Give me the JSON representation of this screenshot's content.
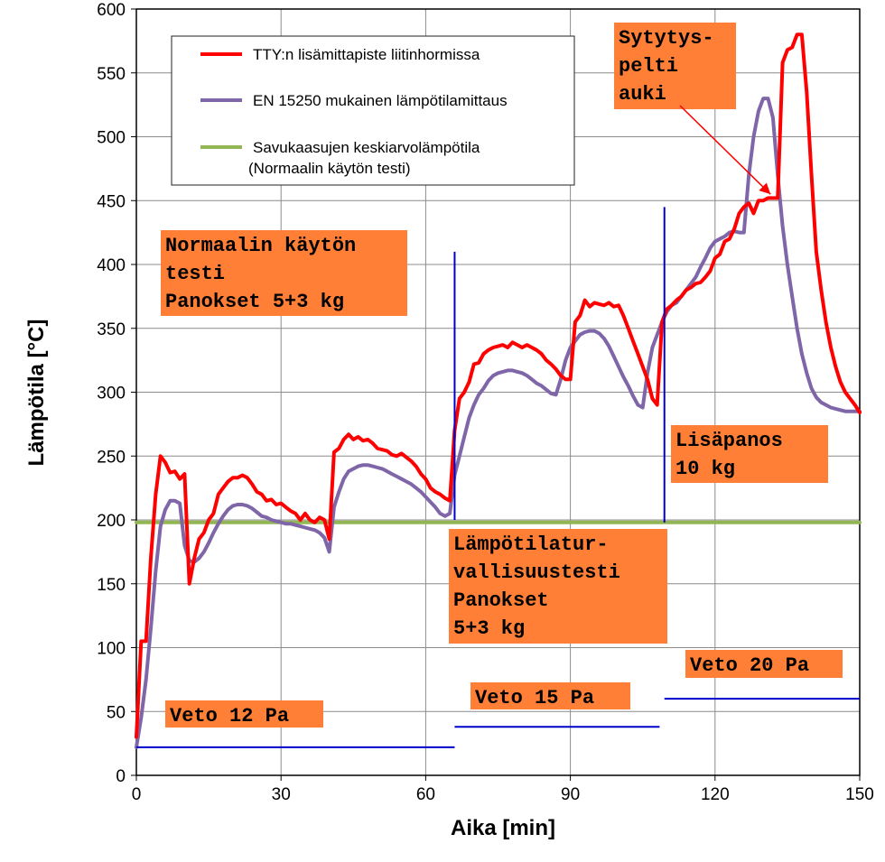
{
  "chart_data": {
    "type": "line",
    "xlabel": "Aika [min]",
    "ylabel": "Lämpötila [°C]",
    "xlim": [
      0,
      150
    ],
    "ylim": [
      0,
      600
    ],
    "x_ticks": [
      0,
      30,
      60,
      90,
      120,
      150
    ],
    "y_ticks": [
      0,
      50,
      100,
      150,
      200,
      250,
      300,
      350,
      400,
      450,
      500,
      550,
      600
    ],
    "x_tick_labels": [
      "0",
      "30",
      "60",
      "90",
      "120",
      "150"
    ],
    "y_tick_labels": [
      "0",
      "50",
      "100",
      "150",
      "200",
      "250",
      "300",
      "350",
      "400",
      "450",
      "500",
      "550",
      "600"
    ],
    "grid": true,
    "legend_position": "top-left",
    "series": [
      {
        "name": "TTY:n lisämittapiste liitinhormissa",
        "color": "#ff0000",
        "x": [
          0,
          1,
          2,
          3,
          4,
          5,
          6,
          7,
          8,
          9,
          10,
          11,
          12,
          13,
          14,
          15,
          16,
          17,
          18,
          19,
          20,
          21,
          22,
          23,
          24,
          25,
          26,
          27,
          28,
          29,
          30,
          31,
          32,
          33,
          34,
          35,
          36,
          37,
          38,
          39,
          40,
          41,
          42,
          43,
          44,
          45,
          46,
          47,
          48,
          49,
          50,
          51,
          52,
          53,
          54,
          55,
          56,
          57,
          58,
          59,
          60,
          61,
          62,
          63,
          64,
          65,
          66,
          67,
          68,
          69,
          70,
          71,
          72,
          73,
          74,
          75,
          76,
          77,
          78,
          79,
          80,
          81,
          82,
          83,
          84,
          85,
          86,
          87,
          88,
          89,
          90,
          91,
          92,
          93,
          94,
          95,
          96,
          97,
          98,
          99,
          100,
          101,
          102,
          103,
          104,
          105,
          106,
          107,
          108,
          109,
          110,
          111,
          112,
          113,
          114,
          115,
          116,
          117,
          118,
          119,
          120,
          121,
          122,
          123,
          124,
          125,
          126,
          127,
          128,
          129,
          130,
          131,
          132,
          133,
          134,
          135,
          136,
          137,
          138,
          139,
          140,
          141,
          142,
          143,
          144,
          145,
          146,
          147,
          148,
          149,
          150
        ],
        "y": [
          30,
          105,
          105,
          170,
          220,
          250,
          245,
          237,
          238,
          232,
          236,
          150,
          170,
          185,
          190,
          200,
          205,
          220,
          225,
          230,
          233,
          233,
          235,
          233,
          228,
          222,
          220,
          215,
          216,
          212,
          213,
          210,
          207,
          205,
          200,
          205,
          200,
          198,
          202,
          200,
          185,
          253,
          256,
          263,
          267,
          263,
          265,
          262,
          263,
          260,
          256,
          255,
          254,
          251,
          250,
          252,
          249,
          246,
          242,
          236,
          232,
          225,
          222,
          220,
          217,
          215,
          270,
          295,
          300,
          308,
          322,
          323,
          330,
          333,
          335,
          336,
          337,
          335,
          339,
          337,
          335,
          337,
          335,
          333,
          330,
          325,
          322,
          318,
          313,
          310,
          310,
          355,
          360,
          372,
          367,
          370,
          369,
          368,
          370,
          367,
          368,
          360,
          350,
          340,
          330,
          320,
          310,
          295,
          290,
          355,
          365,
          368,
          372,
          375,
          380,
          382,
          385,
          386,
          390,
          395,
          405,
          408,
          418,
          420,
          428,
          440,
          445,
          448,
          440,
          450,
          450,
          452,
          452,
          452,
          558,
          568,
          570,
          580,
          580,
          535,
          470,
          410,
          380,
          355,
          335,
          320,
          308,
          300,
          295,
          290,
          284
        ]
      },
      {
        "name": "EN 15250 mukainen lämpötilamittaus",
        "color": "#7f66a8",
        "x": [
          0,
          1,
          2,
          3,
          4,
          5,
          6,
          7,
          8,
          9,
          10,
          11,
          12,
          13,
          14,
          15,
          16,
          17,
          18,
          19,
          20,
          21,
          22,
          23,
          24,
          25,
          26,
          27,
          28,
          29,
          30,
          31,
          32,
          33,
          34,
          35,
          36,
          37,
          38,
          39,
          40,
          41,
          42,
          43,
          44,
          45,
          46,
          47,
          48,
          49,
          50,
          51,
          52,
          53,
          54,
          55,
          56,
          57,
          58,
          59,
          60,
          61,
          62,
          63,
          64,
          65,
          66,
          67,
          68,
          69,
          70,
          71,
          72,
          73,
          74,
          75,
          76,
          77,
          78,
          79,
          80,
          81,
          82,
          83,
          84,
          85,
          86,
          87,
          88,
          89,
          90,
          91,
          92,
          93,
          94,
          95,
          96,
          97,
          98,
          99,
          100,
          101,
          102,
          103,
          104,
          105,
          106,
          107,
          108,
          109,
          110,
          111,
          112,
          113,
          114,
          115,
          116,
          117,
          118,
          119,
          120,
          121,
          122,
          123,
          124,
          125,
          126,
          127,
          128,
          129,
          130,
          131,
          132,
          133,
          134,
          135,
          136,
          137,
          138,
          139,
          140,
          141,
          142,
          143,
          144,
          145,
          146,
          147,
          148,
          149,
          150
        ],
        "y": [
          22,
          45,
          75,
          115,
          160,
          195,
          208,
          215,
          215,
          213,
          180,
          168,
          167,
          170,
          175,
          182,
          190,
          197,
          203,
          208,
          211,
          212,
          212,
          211,
          209,
          206,
          203,
          202,
          200,
          199,
          198,
          197,
          197,
          196,
          195,
          194,
          193,
          192,
          190,
          186,
          175,
          210,
          222,
          232,
          238,
          240,
          242,
          243,
          243,
          242,
          241,
          240,
          238,
          236,
          234,
          232,
          230,
          228,
          225,
          222,
          218,
          214,
          210,
          205,
          203,
          205,
          235,
          250,
          265,
          280,
          290,
          298,
          303,
          309,
          313,
          315,
          316,
          317,
          317,
          316,
          315,
          313,
          310,
          307,
          305,
          302,
          299,
          298,
          310,
          325,
          335,
          340,
          345,
          347,
          348,
          348,
          346,
          342,
          336,
          328,
          320,
          312,
          305,
          297,
          290,
          288,
          315,
          335,
          345,
          355,
          363,
          368,
          370,
          375,
          380,
          385,
          390,
          398,
          405,
          413,
          418,
          420,
          422,
          425,
          426,
          425,
          425,
          470,
          500,
          520,
          530,
          530,
          515,
          470,
          430,
          400,
          375,
          350,
          330,
          315,
          303,
          296,
          292,
          290,
          288,
          287,
          286,
          285,
          285,
          285,
          285
        ]
      },
      {
        "name": "Savukaasujen keskiarvolämpötila",
        "name_line2": "(Normaalin käytön testi)",
        "color": "#92b653",
        "x": [
          0,
          150
        ],
        "y": [
          198,
          198
        ]
      }
    ],
    "vertical_markers": [
      {
        "x": 66,
        "y_from": 200,
        "y_to": 410,
        "color": "#0000cc"
      },
      {
        "x": 109.5,
        "y_from": 198,
        "y_to": 445,
        "color": "#0000cc"
      }
    ],
    "draft_segments": [
      {
        "x_from": 0,
        "x_to": 66,
        "y": 22,
        "color": "#0000cc"
      },
      {
        "x_from": 66,
        "x_to": 108.5,
        "y": 38,
        "color": "#0000cc"
      },
      {
        "x_from": 109.5,
        "x_to": 150,
        "y": 60,
        "color": "#0000cc"
      }
    ],
    "annotations": [
      {
        "lines": [
          "Normaalin käytön",
          "testi",
          "Panokset 5+3 kg"
        ],
        "bg": "#ff7f37"
      },
      {
        "lines": [
          "Lämpötilatur-",
          "vallisuustesti",
          "Panokset",
          "5+3 kg"
        ],
        "bg": "#ff7f37"
      },
      {
        "lines": [
          "Lisäpanos",
          "10 kg"
        ],
        "bg": "#ff7f37"
      },
      {
        "lines": [
          "Sytytys-",
          "pelti",
          "auki"
        ],
        "bg": "#ff7f37"
      },
      {
        "lines": [
          "Veto 12 Pa"
        ],
        "bg": "#ff7f37"
      },
      {
        "lines": [
          "Veto 15 Pa"
        ],
        "bg": "#ff7f37"
      },
      {
        "lines": [
          "Veto 20 Pa"
        ],
        "bg": "#ff7f37"
      }
    ]
  }
}
